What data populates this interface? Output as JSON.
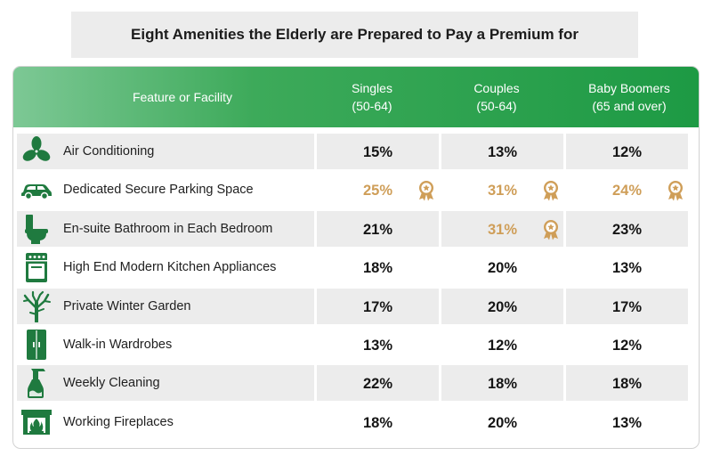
{
  "title": "Eight Amenities the Elderly are Prepared to Pay a Premium for",
  "colors": {
    "header_green": "#1d9a44",
    "icon_green": "#1f7a3f",
    "highlight_gold": "#cf9e58",
    "row_shade": "#ececec"
  },
  "header": {
    "feature": "Feature or Facility",
    "columns": [
      {
        "line1": "Singles",
        "line2": "(50-64)"
      },
      {
        "line1": "Couples",
        "line2": "(50-64)"
      },
      {
        "line1": "Baby Boomers",
        "line2": "(65 and over)"
      }
    ]
  },
  "rows": [
    {
      "icon": "fan-icon",
      "label": "Air Conditioning",
      "values": [
        "15%",
        "13%",
        "12%"
      ],
      "highlight": [
        false,
        false,
        false
      ]
    },
    {
      "icon": "car-icon",
      "label": "Dedicated Secure Parking Space",
      "values": [
        "25%",
        "31%",
        "24%"
      ],
      "highlight": [
        true,
        true,
        true
      ]
    },
    {
      "icon": "toilet-icon",
      "label": "En-suite Bathroom in Each Bedroom",
      "values": [
        "21%",
        "31%",
        "23%"
      ],
      "highlight": [
        false,
        true,
        false
      ]
    },
    {
      "icon": "stove-icon",
      "label": "High End Modern Kitchen Appliances",
      "values": [
        "18%",
        "20%",
        "13%"
      ],
      "highlight": [
        false,
        false,
        false
      ]
    },
    {
      "icon": "tree-icon",
      "label": "Private Winter Garden",
      "values": [
        "17%",
        "20%",
        "17%"
      ],
      "highlight": [
        false,
        false,
        false
      ]
    },
    {
      "icon": "wardrobe-icon",
      "label": "Walk-in Wardrobes",
      "values": [
        "13%",
        "12%",
        "12%"
      ],
      "highlight": [
        false,
        false,
        false
      ]
    },
    {
      "icon": "spray-bottle-icon",
      "label": "Weekly Cleaning",
      "values": [
        "22%",
        "18%",
        "18%"
      ],
      "highlight": [
        false,
        false,
        false
      ]
    },
    {
      "icon": "fireplace-icon",
      "label": "Working Fireplaces",
      "values": [
        "18%",
        "20%",
        "13%"
      ],
      "highlight": [
        false,
        false,
        false
      ]
    }
  ],
  "chart_data": {
    "type": "table",
    "title": "Eight Amenities the Elderly are Prepared to Pay a Premium for",
    "columns": [
      "Singles (50-64)",
      "Couples (50-64)",
      "Baby Boomers (65 and over)"
    ],
    "categories": [
      "Air Conditioning",
      "Dedicated Secure Parking Space",
      "En-suite Bathroom in Each Bedroom",
      "High End Modern Kitchen Appliances",
      "Private Winter Garden",
      "Walk-in Wardrobes",
      "Weekly Cleaning",
      "Working Fireplaces"
    ],
    "series": [
      {
        "name": "Singles (50-64)",
        "values": [
          15,
          25,
          21,
          18,
          17,
          13,
          22,
          18
        ]
      },
      {
        "name": "Couples (50-64)",
        "values": [
          13,
          31,
          31,
          20,
          20,
          12,
          18,
          20
        ]
      },
      {
        "name": "Baby Boomers (65 and over)",
        "values": [
          12,
          24,
          23,
          13,
          17,
          12,
          18,
          13
        ]
      }
    ],
    "unit": "%"
  }
}
